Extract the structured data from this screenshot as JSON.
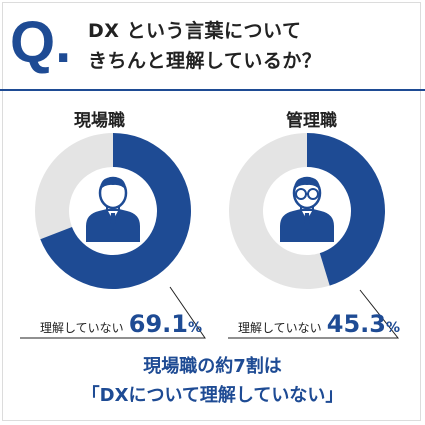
{
  "header": {
    "q_mark": "Q.",
    "question_line1": "DX という言葉について",
    "question_line2": "きちんと理解しているか？"
  },
  "chart_data": [
    {
      "type": "pie",
      "title": "現場職",
      "categories": [
        "理解していない",
        ""
      ],
      "values": [
        69.1,
        30.9
      ],
      "unit": "%",
      "annotation_label": "理解していない",
      "annotation_value": "69.1",
      "annotation_unit": "%",
      "icon": "worker-person-icon"
    },
    {
      "type": "pie",
      "title": "管理職",
      "categories": [
        "理解していない",
        ""
      ],
      "values": [
        45.3,
        54.7
      ],
      "unit": "%",
      "annotation_label": "理解していない",
      "annotation_value": "45.3",
      "annotation_unit": "%",
      "icon": "manager-person-with-glasses-icon"
    }
  ],
  "colors": {
    "accent": "#1e4b94",
    "remainder": "#e4e4e4",
    "text": "#222222"
  },
  "conclusion": {
    "line1": "現場職の約7割は",
    "line2": "「DXについて理解していない」"
  }
}
